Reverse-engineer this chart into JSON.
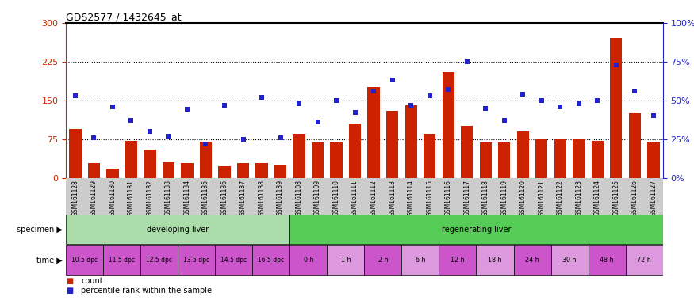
{
  "title": "GDS2577 / 1432645_at",
  "gsm_labels": [
    "GSM161128",
    "GSM161129",
    "GSM161130",
    "GSM161131",
    "GSM161132",
    "GSM161133",
    "GSM161134",
    "GSM161135",
    "GSM161136",
    "GSM161137",
    "GSM161138",
    "GSM161139",
    "GSM161108",
    "GSM161109",
    "GSM161110",
    "GSM161111",
    "GSM161112",
    "GSM161113",
    "GSM161114",
    "GSM161115",
    "GSM161116",
    "GSM161117",
    "GSM161118",
    "GSM161119",
    "GSM161120",
    "GSM161121",
    "GSM161122",
    "GSM161123",
    "GSM161124",
    "GSM161125",
    "GSM161126",
    "GSM161127"
  ],
  "bar_values": [
    95,
    28,
    18,
    72,
    55,
    30,
    28,
    70,
    22,
    28,
    28,
    25,
    85,
    68,
    68,
    105,
    175,
    130,
    140,
    85,
    205,
    100,
    68,
    68,
    90,
    75,
    75,
    75,
    72,
    270,
    125,
    68
  ],
  "dot_values_pct": [
    53,
    26,
    46,
    37,
    30,
    27,
    44,
    22,
    47,
    25,
    52,
    26,
    48,
    36,
    50,
    42,
    56,
    63,
    47,
    53,
    57,
    75,
    45,
    37,
    54,
    50,
    46,
    48,
    50,
    73,
    56,
    40
  ],
  "ylim_left": [
    0,
    300
  ],
  "ylim_right": [
    0,
    100
  ],
  "yticks_left": [
    0,
    75,
    150,
    225,
    300
  ],
  "yticks_right": [
    0,
    25,
    50,
    75,
    100
  ],
  "ytick_labels_left": [
    "0",
    "75",
    "150",
    "225",
    "300"
  ],
  "ytick_labels_right": [
    "0%",
    "25%",
    "50%",
    "75%",
    "100%"
  ],
  "hlines": [
    75,
    150,
    225
  ],
  "bar_color": "#cc2200",
  "dot_color": "#2222cc",
  "specimen_dev_color": "#aaddaa",
  "specimen_reg_color": "#55cc55",
  "time_color_purple": "#cc55cc",
  "time_color_light": "#dd99dd",
  "bg_color": "#ffffff",
  "xtick_bg_color": "#cccccc",
  "bar_width": 0.65,
  "n_bars": 32,
  "dev_count": 12,
  "dev_time_groups": [
    {
      "label": "10.5 dpc",
      "count": 2
    },
    {
      "label": "11.5 dpc",
      "count": 2
    },
    {
      "label": "12.5 dpc",
      "count": 2
    },
    {
      "label": "13.5 dpc",
      "count": 2
    },
    {
      "label": "14.5 dpc",
      "count": 2
    },
    {
      "label": "16.5 dpc",
      "count": 2
    }
  ],
  "reg_time_groups": [
    {
      "label": "0 h",
      "count": 2
    },
    {
      "label": "1 h",
      "count": 2
    },
    {
      "label": "2 h",
      "count": 2
    },
    {
      "label": "6 h",
      "count": 2
    },
    {
      "label": "12 h",
      "count": 2
    },
    {
      "label": "18 h",
      "count": 2
    },
    {
      "label": "24 h",
      "count": 2
    },
    {
      "label": "30 h",
      "count": 2
    },
    {
      "label": "48 h",
      "count": 2
    },
    {
      "label": "72 h",
      "count": 2
    }
  ]
}
